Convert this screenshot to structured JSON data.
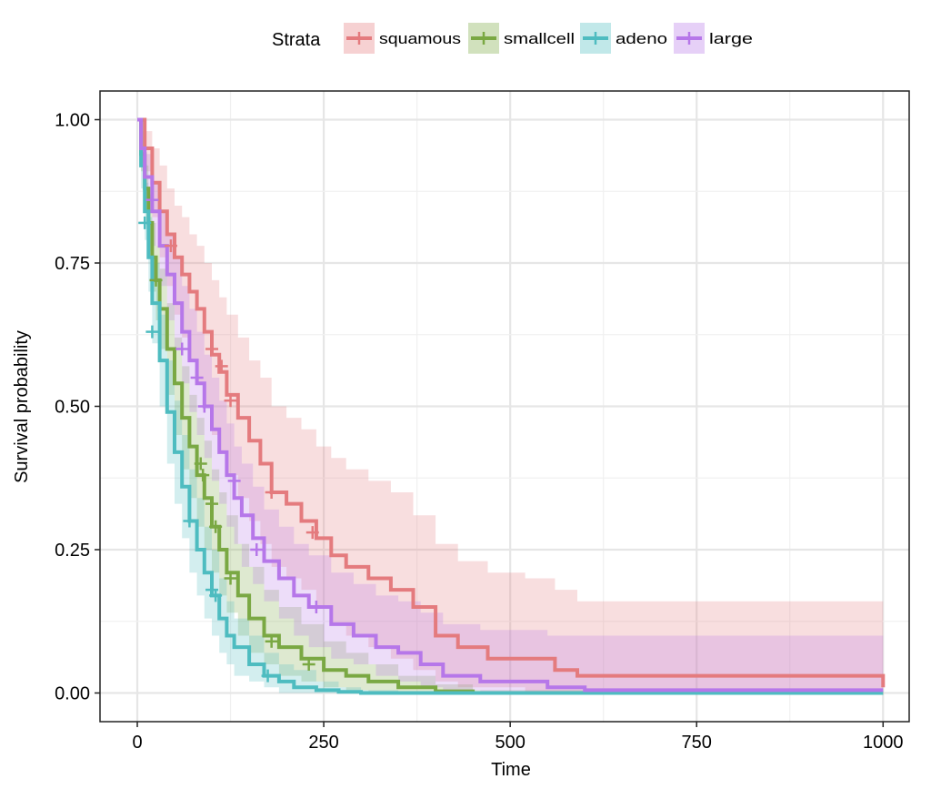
{
  "chart_data": {
    "type": "line",
    "xlabel": "Time",
    "ylabel": "Survival probability",
    "xlim": [
      -50,
      1035
    ],
    "ylim": [
      -0.05,
      1.05
    ],
    "x_ticks": [
      0,
      250,
      500,
      750,
      1000
    ],
    "x_tick_labels": [
      "0",
      "250",
      "500",
      "750",
      "1000"
    ],
    "y_ticks": [
      0,
      0.25,
      0.5,
      0.75,
      1
    ],
    "y_tick_labels": [
      "0.00",
      "0.25",
      "0.50",
      "0.75",
      "1.00"
    ],
    "grid": true,
    "legend": {
      "title": "Strata",
      "position": "top"
    },
    "series": [
      {
        "name": "squamous",
        "color": "#e47b7e",
        "x": [
          0,
          10,
          20,
          30,
          40,
          50,
          60,
          70,
          80,
          90,
          100,
          110,
          120,
          135,
          150,
          165,
          180,
          200,
          220,
          240,
          260,
          280,
          310,
          340,
          370,
          400,
          430,
          470,
          520,
          560,
          590,
          650,
          1000
        ],
        "y": [
          1.0,
          0.95,
          0.89,
          0.84,
          0.8,
          0.76,
          0.73,
          0.7,
          0.67,
          0.63,
          0.59,
          0.56,
          0.52,
          0.48,
          0.44,
          0.4,
          0.35,
          0.33,
          0.3,
          0.27,
          0.24,
          0.22,
          0.2,
          0.18,
          0.15,
          0.1,
          0.08,
          0.06,
          0.06,
          0.04,
          0.03,
          0.03,
          0.01
        ],
        "lower": [
          1.0,
          0.91,
          0.83,
          0.76,
          0.71,
          0.66,
          0.62,
          0.58,
          0.54,
          0.5,
          0.45,
          0.42,
          0.38,
          0.34,
          0.3,
          0.26,
          0.22,
          0.2,
          0.18,
          0.15,
          0.12,
          0.1,
          0.08,
          0.06,
          0.04,
          0.02,
          0.01,
          0.01,
          0.0,
          0.0,
          0.0,
          0.0,
          0.0
        ],
        "upper": [
          1.0,
          0.98,
          0.95,
          0.92,
          0.88,
          0.85,
          0.83,
          0.8,
          0.78,
          0.75,
          0.72,
          0.69,
          0.66,
          0.62,
          0.58,
          0.55,
          0.5,
          0.48,
          0.46,
          0.43,
          0.41,
          0.39,
          0.37,
          0.35,
          0.31,
          0.26,
          0.23,
          0.21,
          0.2,
          0.18,
          0.16,
          0.16,
          0.15
        ],
        "censored": [
          [
            45,
            0.78
          ],
          [
            100,
            0.6
          ],
          [
            113,
            0.57
          ],
          [
            125,
            0.51
          ],
          [
            180,
            0.35
          ],
          [
            235,
            0.28
          ]
        ]
      },
      {
        "name": "smallcell",
        "color": "#7aa843",
        "x": [
          0,
          5,
          10,
          15,
          20,
          25,
          30,
          40,
          50,
          60,
          70,
          80,
          90,
          100,
          110,
          120,
          135,
          150,
          170,
          190,
          220,
          250,
          280,
          310,
          350,
          400,
          450,
          1000
        ],
        "y": [
          1.0,
          0.94,
          0.88,
          0.82,
          0.76,
          0.72,
          0.67,
          0.6,
          0.54,
          0.48,
          0.43,
          0.38,
          0.34,
          0.29,
          0.25,
          0.21,
          0.17,
          0.13,
          0.1,
          0.08,
          0.06,
          0.04,
          0.03,
          0.02,
          0.01,
          0.003,
          0.0,
          0.0
        ],
        "lower": [
          1.0,
          0.91,
          0.84,
          0.77,
          0.7,
          0.65,
          0.6,
          0.52,
          0.45,
          0.39,
          0.34,
          0.29,
          0.25,
          0.21,
          0.17,
          0.14,
          0.1,
          0.07,
          0.05,
          0.03,
          0.02,
          0.01,
          0.005,
          0.0,
          0.0,
          0.0,
          0.0,
          0.0
        ],
        "upper": [
          1.0,
          0.97,
          0.92,
          0.87,
          0.82,
          0.78,
          0.74,
          0.68,
          0.62,
          0.57,
          0.52,
          0.48,
          0.44,
          0.39,
          0.35,
          0.31,
          0.26,
          0.22,
          0.18,
          0.15,
          0.12,
          0.09,
          0.07,
          0.05,
          0.03,
          0.015,
          0.005,
          0.0
        ],
        "censored": [
          [
            25,
            0.72
          ],
          [
            85,
            0.4
          ],
          [
            88,
            0.38
          ],
          [
            100,
            0.33
          ],
          [
            105,
            0.29
          ],
          [
            125,
            0.2
          ],
          [
            180,
            0.09
          ],
          [
            230,
            0.05
          ]
        ]
      },
      {
        "name": "adeno",
        "color": "#4ebcc0",
        "x": [
          0,
          5,
          10,
          15,
          20,
          30,
          40,
          50,
          60,
          70,
          80,
          90,
          100,
          110,
          120,
          130,
          150,
          170,
          190,
          210,
          240,
          270,
          300,
          350,
          1000
        ],
        "y": [
          1.0,
          0.92,
          0.84,
          0.76,
          0.68,
          0.58,
          0.49,
          0.42,
          0.36,
          0.3,
          0.25,
          0.21,
          0.17,
          0.13,
          0.1,
          0.08,
          0.05,
          0.03,
          0.02,
          0.01,
          0.005,
          0.002,
          0.0,
          0.0,
          0.0
        ],
        "lower": [
          1.0,
          0.88,
          0.79,
          0.7,
          0.61,
          0.5,
          0.4,
          0.33,
          0.27,
          0.21,
          0.17,
          0.13,
          0.1,
          0.07,
          0.05,
          0.03,
          0.02,
          0.01,
          0.0,
          0.0,
          0.0,
          0.0,
          0.0,
          0.0,
          0.0
        ],
        "upper": [
          1.0,
          0.95,
          0.89,
          0.83,
          0.75,
          0.66,
          0.58,
          0.51,
          0.45,
          0.39,
          0.34,
          0.29,
          0.25,
          0.2,
          0.16,
          0.13,
          0.1,
          0.07,
          0.05,
          0.04,
          0.02,
          0.01,
          0.005,
          0.0,
          0.0
        ],
        "censored": [
          [
            10,
            0.82
          ],
          [
            20,
            0.63
          ],
          [
            70,
            0.3
          ],
          [
            100,
            0.18
          ],
          [
            105,
            0.17
          ],
          [
            175,
            0.03
          ]
        ]
      },
      {
        "name": "large",
        "color": "#b677e9",
        "x": [
          0,
          5,
          10,
          20,
          30,
          40,
          50,
          60,
          70,
          80,
          90,
          100,
          110,
          120,
          130,
          140,
          155,
          170,
          190,
          210,
          230,
          260,
          290,
          320,
          350,
          380,
          410,
          460,
          550,
          600,
          1000
        ],
        "y": [
          1.0,
          0.95,
          0.9,
          0.84,
          0.78,
          0.73,
          0.68,
          0.63,
          0.58,
          0.54,
          0.5,
          0.46,
          0.42,
          0.38,
          0.34,
          0.31,
          0.27,
          0.23,
          0.2,
          0.17,
          0.15,
          0.12,
          0.1,
          0.08,
          0.07,
          0.05,
          0.03,
          0.02,
          0.01,
          0.005,
          0.005
        ],
        "lower": [
          1.0,
          0.92,
          0.86,
          0.78,
          0.71,
          0.65,
          0.6,
          0.54,
          0.49,
          0.45,
          0.41,
          0.37,
          0.33,
          0.29,
          0.26,
          0.22,
          0.19,
          0.16,
          0.13,
          0.1,
          0.08,
          0.06,
          0.05,
          0.03,
          0.02,
          0.01,
          0.005,
          0.002,
          0.0,
          0.0,
          0.0
        ],
        "upper": [
          1.0,
          0.98,
          0.94,
          0.89,
          0.84,
          0.8,
          0.76,
          0.71,
          0.67,
          0.63,
          0.59,
          0.55,
          0.51,
          0.47,
          0.43,
          0.4,
          0.36,
          0.32,
          0.29,
          0.26,
          0.24,
          0.21,
          0.19,
          0.17,
          0.16,
          0.14,
          0.12,
          0.11,
          0.1,
          0.1,
          0.1
        ],
        "censored": [
          [
            20,
            0.86
          ],
          [
            60,
            0.6
          ],
          [
            80,
            0.55
          ],
          [
            90,
            0.5
          ],
          [
            130,
            0.37
          ],
          [
            160,
            0.25
          ],
          [
            240,
            0.15
          ]
        ]
      }
    ]
  }
}
